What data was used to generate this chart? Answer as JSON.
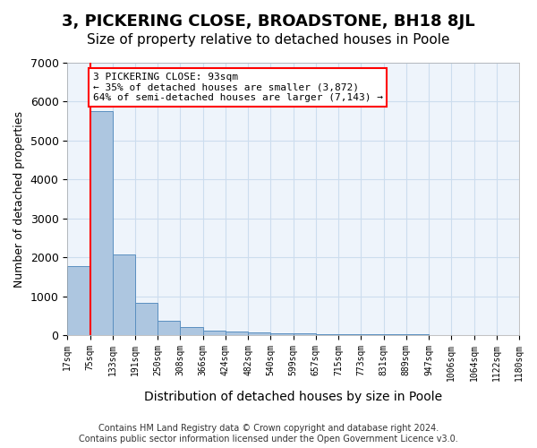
{
  "title": "3, PICKERING CLOSE, BROADSTONE, BH18 8JL",
  "subtitle": "Size of property relative to detached houses in Poole",
  "xlabel": "Distribution of detached houses by size in Poole",
  "ylabel": "Number of detached properties",
  "footer_line1": "Contains HM Land Registry data © Crown copyright and database right 2024.",
  "footer_line2": "Contains public sector information licensed under the Open Government Licence v3.0.",
  "bin_labels": [
    "17sqm",
    "75sqm",
    "133sqm",
    "191sqm",
    "250sqm",
    "308sqm",
    "366sqm",
    "424sqm",
    "482sqm",
    "540sqm",
    "599sqm",
    "657sqm",
    "715sqm",
    "773sqm",
    "831sqm",
    "889sqm",
    "947sqm",
    "1006sqm",
    "1064sqm",
    "1122sqm",
    "1180sqm"
  ],
  "bar_heights": [
    1780,
    5750,
    2080,
    820,
    370,
    200,
    120,
    90,
    65,
    50,
    40,
    30,
    25,
    20,
    17,
    14,
    12,
    10,
    8,
    6
  ],
  "bar_color": "#adc6e0",
  "bar_edge_color": "#5a8fc0",
  "vline_color": "red",
  "ylim": [
    0,
    7000
  ],
  "yticks": [
    0,
    1000,
    2000,
    3000,
    4000,
    5000,
    6000,
    7000
  ],
  "annotation_line1": "3 PICKERING CLOSE: 93sqm",
  "annotation_line2": "← 35% of detached houses are smaller (3,872)",
  "annotation_line3": "64% of semi-detached houses are larger (7,143) →",
  "annotation_box_color": "white",
  "annotation_box_edge_color": "red",
  "grid_color": "#ccddee",
  "bg_color": "#eef4fb",
  "title_fontsize": 13,
  "subtitle_fontsize": 11
}
